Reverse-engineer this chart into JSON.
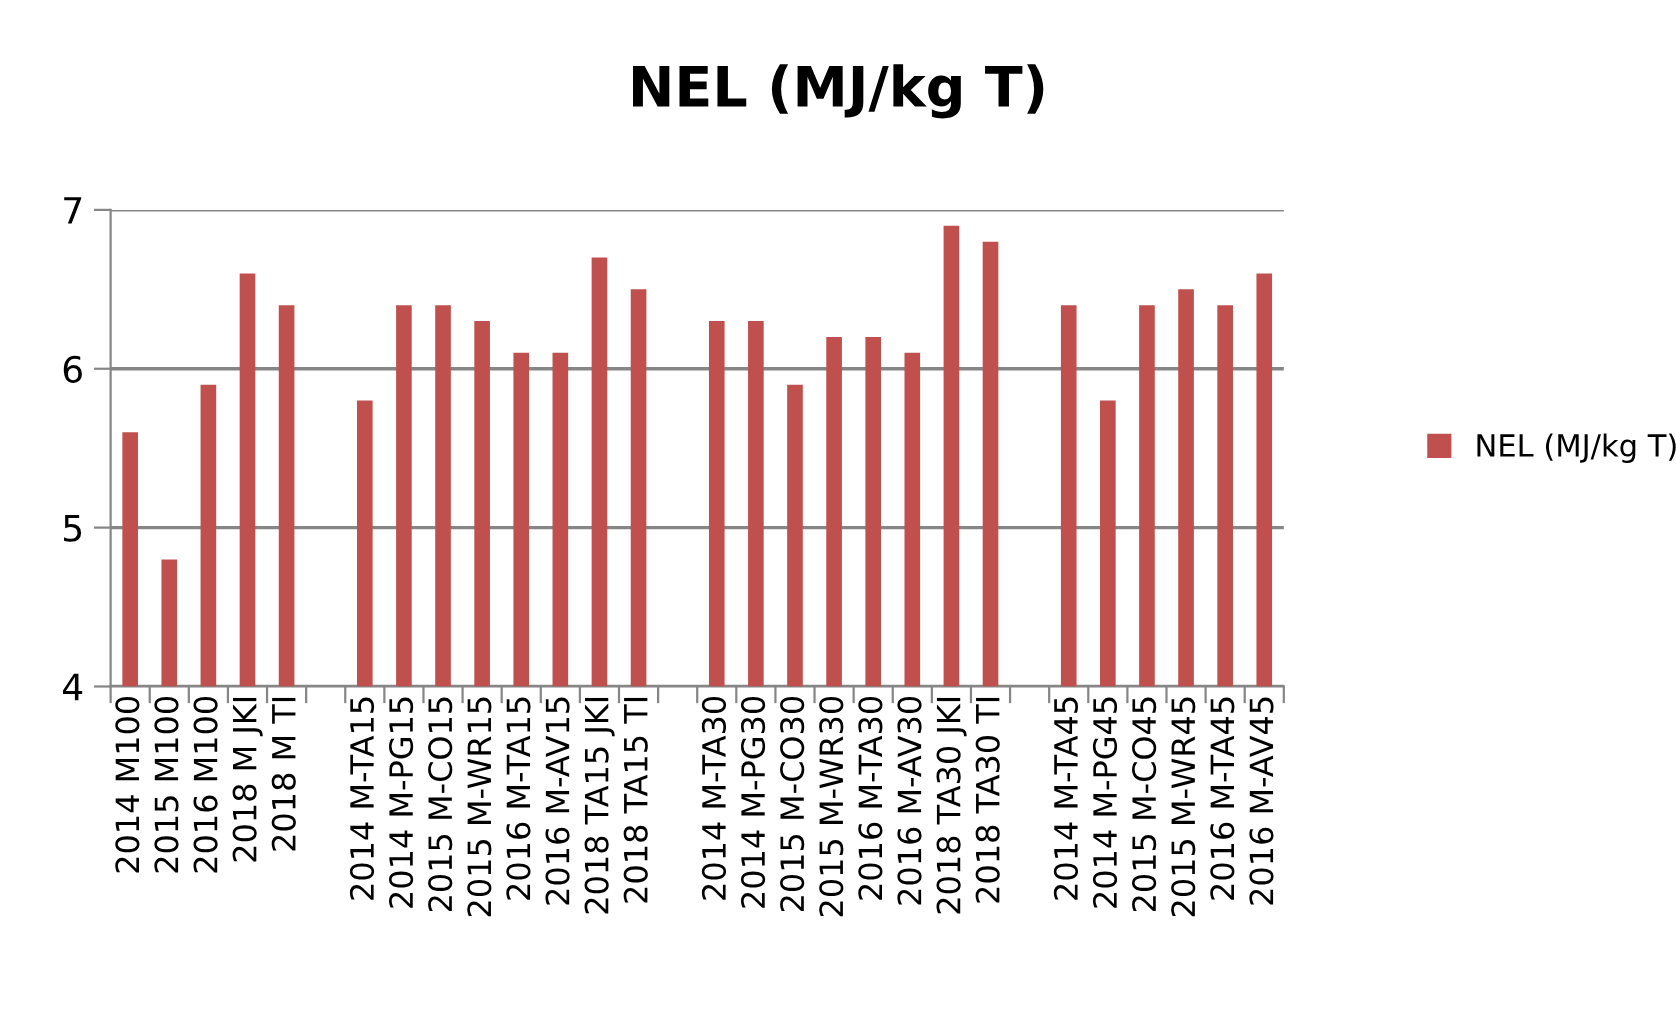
{
  "chart_data": {
    "type": "bar",
    "title": "NEL (MJ/kg T)",
    "categories": [
      "2014 M100",
      "2015 M100",
      "2016 M100",
      "2018 M JKI",
      "2018 M TI",
      null,
      "2014 M-TA15",
      "2014 M-PG15",
      "2015 M-CO15",
      "2015 M-WR15",
      "2016 M-TA15",
      "2016 M-AV15",
      "2018 TA15 JKI",
      "2018 TA15 TI",
      null,
      "2014 M-TA30",
      "2014 M-PG30",
      "2015 M-CO30",
      "2015 M-WR30",
      "2016 M-TA30",
      "2016 M-AV30",
      "2018 TA30 JKI",
      "2018 TA30 TI",
      null,
      "2014 M-TA45",
      "2014 M-PG45",
      "2015 M-CO45",
      "2015 M-WR45",
      "2016 M-TA45",
      "2016 M-AV45"
    ],
    "series": [
      {
        "name": "NEL (MJ/kg T)",
        "color": "#c0504d",
        "values": [
          5.6,
          4.8,
          5.9,
          6.6,
          6.4,
          null,
          5.8,
          6.4,
          6.4,
          6.3,
          6.1,
          6.1,
          6.7,
          6.5,
          null,
          6.3,
          6.3,
          5.9,
          6.2,
          6.2,
          6.1,
          6.9,
          6.8,
          null,
          6.4,
          5.8,
          6.4,
          6.5,
          6.4,
          6.6
        ]
      }
    ],
    "ylim": [
      4,
      7
    ],
    "yticks": [
      4,
      5,
      6,
      7
    ],
    "grid": "y",
    "legend": "right"
  }
}
